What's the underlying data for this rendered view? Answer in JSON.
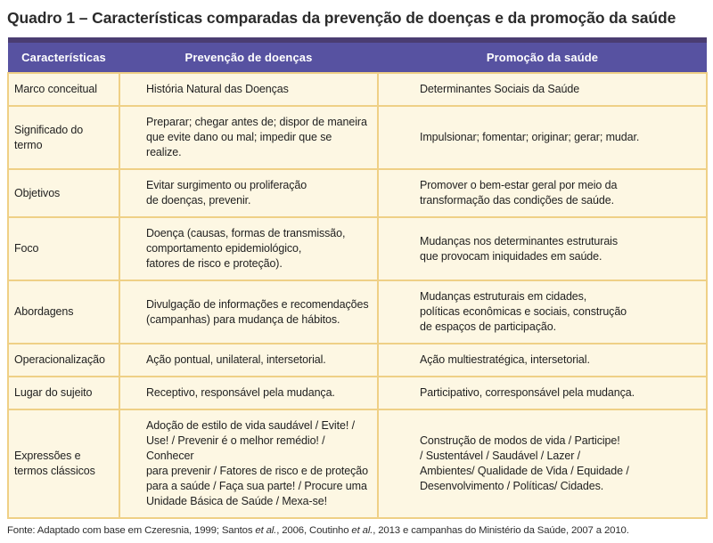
{
  "title": "Quadro 1 – Características comparadas da prevenção de doenças e da promoção da saúde",
  "colors": {
    "header_background": "#5752a1",
    "header_top_border": "#4a3d72",
    "header_text": "#ffffff",
    "body_background": "#fdf7e3",
    "cell_border": "#efd086",
    "body_text": "#1f1f1f"
  },
  "table": {
    "headers": [
      "Características",
      "Prevenção de doenças",
      "Promoção da saúde"
    ],
    "rows": [
      {
        "label": "Marco conceitual",
        "prevention": "História Natural das Doenças",
        "promotion": "Determinantes Sociais da Saúde"
      },
      {
        "label": "Significado do termo",
        "prevention": "Preparar; chegar antes de; dispor de maneira\nque evite dano ou mal; impedir que se realize.",
        "promotion": "Impulsionar; fomentar; originar; gerar; mudar."
      },
      {
        "label": "Objetivos",
        "prevention": "Evitar surgimento ou proliferação\nde doenças, prevenir.",
        "promotion": "Promover o bem-estar geral por meio da\ntransformação das condições de saúde."
      },
      {
        "label": "Foco",
        "prevention": "Doença (causas, formas de transmissão,\ncomportamento epidemiológico,\nfatores de risco e proteção).",
        "promotion": "Mudanças nos determinantes estruturais\nque provocam iniquidades em saúde."
      },
      {
        "label": "Abordagens",
        "prevention": "Divulgação de informações e recomendações\n(campanhas) para mudança de hábitos.",
        "promotion": "Mudanças estruturais em cidades,\npolíticas econômicas e sociais, construção\nde espaços de participação."
      },
      {
        "label": "Operacionalização",
        "prevention": "Ação pontual, unilateral, intersetorial.",
        "promotion": "Ação multiestratégica, intersetorial."
      },
      {
        "label": "Lugar do sujeito",
        "prevention": "Receptivo, responsável pela mudança.",
        "promotion": "Participativo, corresponsável pela mudança."
      },
      {
        "label": "Expressões e\ntermos clássicos",
        "prevention": "Adoção de estilo de vida saudável / Evite! /\nUse! / Prevenir é o melhor remédio! / Conhecer\npara prevenir / Fatores de risco e de proteção\npara a saúde / Faça sua parte! / Procure uma\nUnidade Básica de Saúde / Mexa-se!",
        "promotion": "Construção de modos de vida / Participe!\n/ Sustentável / Saudável / Lazer /\nAmbientes/ Qualidade de Vida / Equidade /\nDesenvolvimento / Políticas/ Cidades."
      }
    ]
  },
  "footer": {
    "part1": "Fonte: Adaptado com base em Czeresnia, 1999; Santos ",
    "italic1": "et al.",
    "part2": ", 2006, Coutinho ",
    "italic2": "et al.",
    "part3": ", 2013 e campanhas do Ministério da Saúde, 2007 a 2010."
  }
}
